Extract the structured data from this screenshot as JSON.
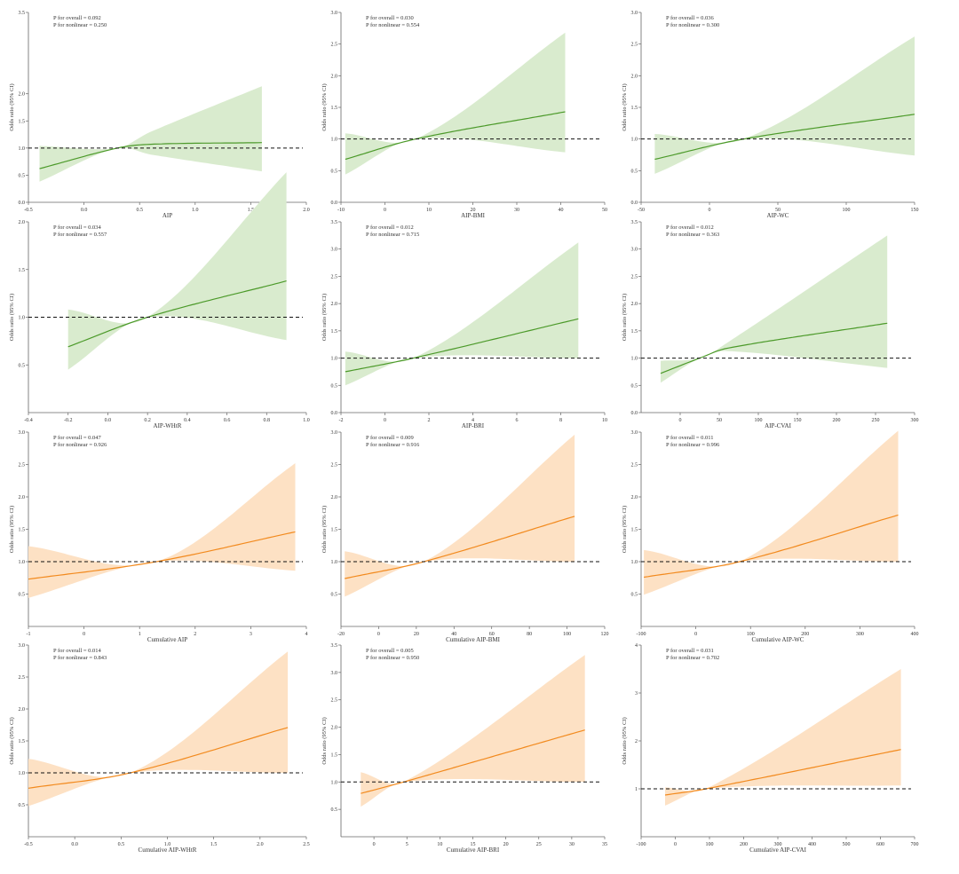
{
  "colors": {
    "green_line": "#4c9a2a",
    "green_band": "#d9ebce",
    "orange_line": "#f28a1e",
    "orange_band": "#fde1c4",
    "axis": "#666666",
    "ref_line": "#111111"
  },
  "chart_data": [
    {
      "type": "line",
      "xlabel": "AIP",
      "ylabel": "Odds ratio (95% CI)",
      "p_overall": "P for overall = 0.092",
      "p_nonlinear": "P for nonlinear = 0.250",
      "xlim": [
        -0.5,
        2.0
      ],
      "xticks": [
        -0.5,
        0.0,
        0.5,
        1.0,
        1.5,
        2.0
      ],
      "xtick_labels": [
        "-0.5",
        "0.0",
        "0.5",
        "1.0",
        "1.5",
        "2.0"
      ],
      "ylim": [
        0,
        3.5
      ],
      "yticks": [
        0,
        0.5,
        1.0,
        1.5,
        2.0,
        3.5
      ],
      "ytick_labels": [
        "0.0",
        "0.5",
        "1.0",
        "1.5",
        "2.0",
        "3.5"
      ],
      "palette": "green",
      "ref": 1.0,
      "x": [
        -0.4,
        0.3,
        0.6,
        1.6
      ],
      "y": [
        0.62,
        1.0,
        1.07,
        1.1
      ],
      "lo": [
        0.38,
        1.0,
        0.88,
        0.57
      ],
      "hi": [
        1.04,
        1.0,
        1.3,
        2.14
      ]
    },
    {
      "type": "line",
      "xlabel": "AIP-BMI",
      "ylabel": "Odds ratio (95% CI)",
      "p_overall": "P for overall = 0.030",
      "p_nonlinear": "P for nonlinear = 0.554",
      "xlim": [
        -10,
        50
      ],
      "xticks": [
        -10,
        0,
        10,
        20,
        30,
        40,
        50
      ],
      "xtick_labels": [
        "-10",
        "0",
        "10",
        "20",
        "30",
        "40",
        "50"
      ],
      "ylim": [
        0,
        3.0
      ],
      "yticks": [
        0,
        0.5,
        1.0,
        1.5,
        2.0,
        2.5,
        3.0
      ],
      "ytick_labels": [
        "0.0",
        "0.5",
        "1.0",
        "1.5",
        "2.0",
        "2.5",
        "3.0"
      ],
      "palette": "green",
      "ref": 1.0,
      "x": [
        -9,
        7,
        41
      ],
      "y": [
        0.68,
        1.0,
        1.43
      ],
      "lo": [
        0.44,
        1.0,
        0.79
      ],
      "hi": [
        1.09,
        1.0,
        2.68
      ]
    },
    {
      "type": "line",
      "xlabel": "AIP-WC",
      "ylabel": "Odds ratio (95% CI)",
      "p_overall": "P for overall = 0.036",
      "p_nonlinear": "P for nonlinear = 0.300",
      "xlim": [
        -50,
        150
      ],
      "xticks": [
        -50,
        0,
        50,
        100,
        150
      ],
      "xtick_labels": [
        "-50",
        "0",
        "50",
        "100",
        "150"
      ],
      "ylim": [
        0,
        3.0
      ],
      "yticks": [
        0,
        0.5,
        1.0,
        1.5,
        2.0,
        2.5,
        3.0
      ],
      "ytick_labels": [
        "0.0",
        "0.5",
        "1.0",
        "1.5",
        "2.0",
        "2.5",
        "3.0"
      ],
      "palette": "green",
      "ref": 1.0,
      "x": [
        -40,
        25,
        150
      ],
      "y": [
        0.68,
        1.0,
        1.39
      ],
      "lo": [
        0.45,
        1.0,
        0.74
      ],
      "hi": [
        1.08,
        1.0,
        2.62
      ]
    },
    {
      "type": "line",
      "xlabel": "AIP-WHtR",
      "ylabel": "Odds ratio (95% CI)",
      "p_overall": "P for overall = 0.034",
      "p_nonlinear": "P for nonlinear = 0.557",
      "xlim": [
        -0.4,
        1.0
      ],
      "xticks": [
        -0.4,
        -0.2,
        0.0,
        0.2,
        0.4,
        0.6,
        0.8,
        1.0
      ],
      "xtick_labels": [
        "-0.4",
        "-0.2",
        "0.0",
        "0.2",
        "0.4",
        "0.6",
        "0.8",
        "1.0"
      ],
      "ylim": [
        0,
        2.0
      ],
      "yticks": [
        0.5,
        1.0,
        1.5,
        2.0
      ],
      "ytick_labels": [
        "0.5",
        "1.0",
        "1.5",
        "2.0"
      ],
      "palette": "green",
      "ref": 1.0,
      "x": [
        -0.2,
        0.2,
        0.9
      ],
      "y": [
        0.69,
        1.0,
        1.38
      ],
      "lo": [
        0.45,
        1.0,
        0.76
      ],
      "hi": [
        1.08,
        1.0,
        2.52
      ]
    },
    {
      "type": "line",
      "xlabel": "AIP-BRI",
      "ylabel": "Odds ratio (95% CI)",
      "p_overall": "P for overall = 0.012",
      "p_nonlinear": "P for nonlinear = 0.715",
      "xlim": [
        -2,
        10
      ],
      "xticks": [
        -2,
        0,
        2,
        4,
        6,
        8,
        10
      ],
      "xtick_labels": [
        "-2",
        "0",
        "2",
        "4",
        "6",
        "8",
        "10"
      ],
      "ylim": [
        0,
        3.5
      ],
      "yticks": [
        0,
        0.5,
        1.0,
        1.5,
        2.0,
        2.5,
        3.0,
        3.5
      ],
      "ytick_labels": [
        "0.0",
        "0.5",
        "1.0",
        "1.5",
        "2.0",
        "2.5",
        "3.0",
        "3.5"
      ],
      "palette": "green",
      "ref": 1.0,
      "x": [
        -1.8,
        1.3,
        8.8
      ],
      "y": [
        0.75,
        1.0,
        1.72
      ],
      "lo": [
        0.5,
        1.0,
        1.0
      ],
      "hi": [
        1.12,
        1.0,
        3.12
      ]
    },
    {
      "type": "line",
      "xlabel": "AIP-CVAI",
      "ylabel": "Odds ratio (95% CI)",
      "p_overall": "P for overall = 0.012",
      "p_nonlinear": "P for nonlinear = 0.363",
      "xlim": [
        -50,
        300
      ],
      "xticks": [
        0,
        50,
        100,
        150,
        200,
        250,
        300
      ],
      "xtick_labels": [
        "0",
        "50",
        "100",
        "150",
        "200",
        "250",
        "300"
      ],
      "ylim": [
        0,
        3.5
      ],
      "yticks": [
        0,
        0.5,
        1.0,
        1.5,
        2.0,
        2.5,
        3.0,
        3.5
      ],
      "ytick_labels": [
        "0.0",
        "0.5",
        "1.0",
        "1.5",
        "2.0",
        "2.5",
        "3.0",
        "3.5"
      ],
      "palette": "green",
      "ref": 1.0,
      "x": [
        -25,
        25,
        60,
        265
      ],
      "y": [
        0.72,
        1.0,
        1.18,
        1.64
      ],
      "lo": [
        0.55,
        1.0,
        1.13,
        0.82
      ],
      "hi": [
        0.95,
        1.0,
        1.28,
        3.25
      ]
    },
    {
      "type": "line",
      "xlabel": "Cumulative AIP",
      "ylabel": "Odds ratio (95% CI)",
      "p_overall": "P for overall = 0.047",
      "p_nonlinear": "P for nonlinear = 0.926",
      "xlim": [
        -1,
        4
      ],
      "xticks": [
        -1,
        0,
        1,
        2,
        3,
        4
      ],
      "xtick_labels": [
        "-1",
        "0",
        "1",
        "2",
        "3",
        "4"
      ],
      "ylim": [
        0,
        3.0
      ],
      "yticks": [
        0.5,
        1.0,
        1.5,
        2.0,
        2.5,
        3.0
      ],
      "ytick_labels": [
        "0.5",
        "1.0",
        "1.5",
        "2.0",
        "2.5",
        "3.0"
      ],
      "palette": "orange",
      "ref": 1.0,
      "x": [
        -1,
        1.3,
        3.8
      ],
      "y": [
        0.73,
        1.0,
        1.46
      ],
      "lo": [
        0.44,
        1.0,
        0.86
      ],
      "hi": [
        1.24,
        1.0,
        2.52
      ]
    },
    {
      "type": "line",
      "xlabel": "Cumulative AIP-BMI",
      "ylabel": "Odds ratio (95% CI)",
      "p_overall": "P for overall = 0.009",
      "p_nonlinear": "P for nonlinear = 0.916",
      "xlim": [
        -20,
        120
      ],
      "xticks": [
        -20,
        0,
        20,
        40,
        60,
        80,
        100,
        120
      ],
      "xtick_labels": [
        "-20",
        "0",
        "20",
        "40",
        "60",
        "80",
        "100",
        "120"
      ],
      "ylim": [
        0,
        3.0
      ],
      "yticks": [
        0.5,
        1.0,
        1.5,
        2.0,
        2.5,
        3.0
      ],
      "ytick_labels": [
        "0.5",
        "1.0",
        "1.5",
        "2.0",
        "2.5",
        "3.0"
      ],
      "palette": "orange",
      "ref": 1.0,
      "x": [
        -18,
        24,
        104
      ],
      "y": [
        0.74,
        1.0,
        1.7
      ],
      "lo": [
        0.46,
        1.0,
        1.0
      ],
      "hi": [
        1.16,
        1.0,
        2.96
      ]
    },
    {
      "type": "line",
      "xlabel": "Cumulative AIP-WC",
      "ylabel": "Odds ratio (95% CI)",
      "p_overall": "P for overall = 0.011",
      "p_nonlinear": "P for nonlinear = 0.996",
      "xlim": [
        -100,
        400
      ],
      "xticks": [
        -100,
        0,
        100,
        200,
        300,
        400
      ],
      "xtick_labels": [
        "-100",
        "0",
        "100",
        "200",
        "300",
        "400"
      ],
      "ylim": [
        0,
        3.0
      ],
      "yticks": [
        0.5,
        1.0,
        1.5,
        2.0,
        2.5,
        3.0
      ],
      "ytick_labels": [
        "0.5",
        "1.0",
        "1.5",
        "2.0",
        "2.5",
        "3.0"
      ],
      "palette": "orange",
      "ref": 1.0,
      "x": [
        -95,
        80,
        370
      ],
      "y": [
        0.76,
        1.0,
        1.72
      ],
      "lo": [
        0.49,
        1.0,
        1.0
      ],
      "hi": [
        1.18,
        1.0,
        3.02
      ]
    },
    {
      "type": "line",
      "xlabel": "Cumulative AIP-WHtR",
      "ylabel": "Odds ratio (95% CI)",
      "p_overall": "P for overall = 0.014",
      "p_nonlinear": "P for nonlinear = 0.843",
      "xlim": [
        -0.5,
        2.5
      ],
      "xticks": [
        -0.5,
        0.0,
        0.5,
        1.0,
        1.5,
        2.0,
        2.5
      ],
      "xtick_labels": [
        "-0.5",
        "0.0",
        "0.5",
        "1.0",
        "1.5",
        "2.0",
        "2.5"
      ],
      "ylim": [
        0,
        3.0
      ],
      "yticks": [
        0.5,
        1.0,
        1.5,
        2.0,
        2.5,
        3.0
      ],
      "ytick_labels": [
        "0.5",
        "1.0",
        "1.5",
        "2.0",
        "2.5",
        "3.0"
      ],
      "palette": "orange",
      "ref": 1.0,
      "x": [
        -0.5,
        0.6,
        2.3
      ],
      "y": [
        0.76,
        1.0,
        1.71
      ],
      "lo": [
        0.48,
        1.0,
        1.0
      ],
      "hi": [
        1.22,
        1.0,
        2.9
      ]
    },
    {
      "type": "line",
      "xlabel": "Cumulative AIP-BRI",
      "ylabel": "Odds ratio (95% CI)",
      "p_overall": "P for overall = 0.005",
      "p_nonlinear": "P for nonlinear = 0.950",
      "xlim": [
        -5,
        35
      ],
      "xticks": [
        0,
        5,
        10,
        15,
        20,
        25,
        30,
        35
      ],
      "xtick_labels": [
        "0",
        "5",
        "10",
        "15",
        "20",
        "25",
        "30",
        "35"
      ],
      "ylim": [
        0,
        3.5
      ],
      "yticks": [
        0.5,
        1.0,
        1.5,
        2.0,
        2.5,
        3.0,
        3.5
      ],
      "ytick_labels": [
        "0.5",
        "1.0",
        "1.5",
        "2.0",
        "2.5",
        "3.0",
        "3.5"
      ],
      "palette": "orange",
      "ref": 1.0,
      "x": [
        -2,
        4.5,
        32
      ],
      "y": [
        0.79,
        1.0,
        1.95
      ],
      "lo": [
        0.55,
        1.0,
        1.0
      ],
      "hi": [
        1.18,
        1.0,
        3.32
      ]
    },
    {
      "type": "line",
      "xlabel": "Cumulative AIP-CVAI",
      "ylabel": "Odds ratio (95% CI)",
      "p_overall": "P for overall = 0.031",
      "p_nonlinear": "P for nonlinear = 0.702",
      "xlim": [
        -100,
        700
      ],
      "xticks": [
        -100,
        0,
        100,
        200,
        300,
        400,
        500,
        600,
        700
      ],
      "xtick_labels": [
        "-100",
        "0",
        "100",
        "200",
        "300",
        "400",
        "500",
        "600",
        "700"
      ],
      "ylim": [
        0,
        4
      ],
      "yticks": [
        1,
        2,
        3,
        4
      ],
      "ytick_labels": [
        "1",
        "2",
        "3",
        "4"
      ],
      "palette": "orange",
      "ref": 1.0,
      "x": [
        -30,
        90,
        660
      ],
      "y": [
        0.87,
        1.0,
        1.82
      ],
      "lo": [
        0.65,
        1.0,
        1.07
      ],
      "hi": [
        1.03,
        1.0,
        3.5
      ]
    }
  ]
}
